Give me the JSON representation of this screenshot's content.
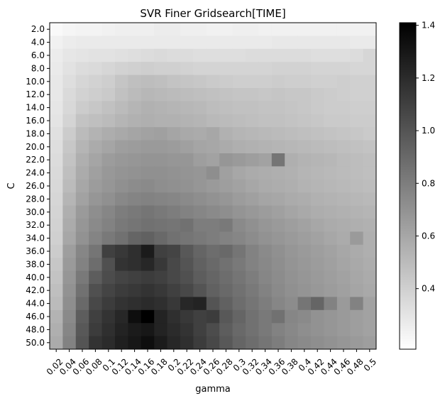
{
  "chart_data": {
    "type": "heatmap",
    "title": "SVR Finer Gridsearch[TIME]",
    "xlabel": "gamma",
    "ylabel": "C",
    "x_categories": [
      "0.02",
      "0.04",
      "0.06",
      "0.08",
      "0.1",
      "0.12",
      "0.14",
      "0.16",
      "0.18",
      "0.2",
      "0.22",
      "0.24",
      "0.26",
      "0.28",
      "0.3",
      "0.32",
      "0.34",
      "0.36",
      "0.38",
      "0.4",
      "0.42",
      "0.44",
      "0.46",
      "0.48",
      "0.5"
    ],
    "y_categories": [
      "2.0",
      "4.0",
      "6.0",
      "8.0",
      "10.0",
      "12.0",
      "14.0",
      "16.0",
      "18.0",
      "20.0",
      "22.0",
      "24.0",
      "26.0",
      "28.0",
      "30.0",
      "32.0",
      "34.0",
      "36.0",
      "38.0",
      "40.0",
      "42.0",
      "44.0",
      "46.0",
      "48.0",
      "50.0"
    ],
    "colormap": "Greys",
    "vmin": 0.17,
    "vmax": 1.41,
    "colorbar_ticks": [
      "0.4",
      "0.6",
      "0.8",
      "1.0",
      "1.2",
      "1.4"
    ],
    "colorbar_tick_values": [
      0.4,
      0.6,
      0.8,
      1.0,
      1.2,
      1.4
    ],
    "values": [
      [
        0.2,
        0.22,
        0.23,
        0.23,
        0.24,
        0.25,
        0.25,
        0.25,
        0.26,
        0.26,
        0.25,
        0.25,
        0.24,
        0.24,
        0.25,
        0.25,
        0.24,
        0.24,
        0.24,
        0.24,
        0.24,
        0.24,
        0.24,
        0.24,
        0.24
      ],
      [
        0.24,
        0.26,
        0.27,
        0.27,
        0.27,
        0.27,
        0.27,
        0.27,
        0.27,
        0.27,
        0.27,
        0.27,
        0.27,
        0.27,
        0.27,
        0.27,
        0.27,
        0.28,
        0.28,
        0.28,
        0.28,
        0.28,
        0.28,
        0.27,
        0.27
      ],
      [
        0.26,
        0.29,
        0.3,
        0.31,
        0.31,
        0.32,
        0.33,
        0.34,
        0.35,
        0.34,
        0.34,
        0.33,
        0.33,
        0.33,
        0.33,
        0.34,
        0.34,
        0.34,
        0.34,
        0.34,
        0.33,
        0.33,
        0.33,
        0.34,
        0.37
      ],
      [
        0.27,
        0.31,
        0.34,
        0.35,
        0.37,
        0.39,
        0.4,
        0.41,
        0.4,
        0.4,
        0.39,
        0.38,
        0.38,
        0.38,
        0.38,
        0.38,
        0.38,
        0.39,
        0.39,
        0.39,
        0.38,
        0.38,
        0.38,
        0.37,
        0.37
      ],
      [
        0.28,
        0.33,
        0.37,
        0.39,
        0.41,
        0.45,
        0.48,
        0.49,
        0.48,
        0.46,
        0.45,
        0.44,
        0.43,
        0.42,
        0.41,
        0.41,
        0.41,
        0.42,
        0.41,
        0.41,
        0.4,
        0.4,
        0.41,
        0.4,
        0.4
      ],
      [
        0.28,
        0.35,
        0.39,
        0.41,
        0.43,
        0.47,
        0.5,
        0.52,
        0.51,
        0.5,
        0.49,
        0.48,
        0.47,
        0.46,
        0.45,
        0.45,
        0.44,
        0.45,
        0.44,
        0.44,
        0.43,
        0.42,
        0.41,
        0.4,
        0.4
      ],
      [
        0.29,
        0.36,
        0.42,
        0.44,
        0.47,
        0.5,
        0.53,
        0.55,
        0.54,
        0.53,
        0.52,
        0.51,
        0.49,
        0.48,
        0.47,
        0.47,
        0.46,
        0.46,
        0.45,
        0.44,
        0.43,
        0.42,
        0.42,
        0.41,
        0.41
      ],
      [
        0.3,
        0.38,
        0.46,
        0.48,
        0.5,
        0.53,
        0.55,
        0.56,
        0.55,
        0.55,
        0.54,
        0.53,
        0.51,
        0.5,
        0.49,
        0.48,
        0.47,
        0.47,
        0.46,
        0.45,
        0.44,
        0.43,
        0.43,
        0.42,
        0.42
      ],
      [
        0.32,
        0.42,
        0.5,
        0.54,
        0.57,
        0.59,
        0.61,
        0.62,
        0.63,
        0.61,
        0.59,
        0.58,
        0.6,
        0.55,
        0.53,
        0.52,
        0.51,
        0.5,
        0.49,
        0.48,
        0.47,
        0.46,
        0.45,
        0.44,
        0.43
      ],
      [
        0.33,
        0.44,
        0.53,
        0.58,
        0.61,
        0.64,
        0.65,
        0.66,
        0.66,
        0.65,
        0.63,
        0.61,
        0.6,
        0.58,
        0.56,
        0.55,
        0.54,
        0.53,
        0.52,
        0.51,
        0.5,
        0.49,
        0.48,
        0.47,
        0.46
      ],
      [
        0.34,
        0.46,
        0.56,
        0.61,
        0.65,
        0.67,
        0.68,
        0.69,
        0.69,
        0.68,
        0.68,
        0.64,
        0.62,
        0.68,
        0.66,
        0.64,
        0.62,
        0.84,
        0.56,
        0.54,
        0.53,
        0.52,
        0.5,
        0.49,
        0.48
      ],
      [
        0.35,
        0.48,
        0.58,
        0.63,
        0.67,
        0.69,
        0.7,
        0.71,
        0.71,
        0.7,
        0.69,
        0.68,
        0.72,
        0.63,
        0.6,
        0.58,
        0.57,
        0.56,
        0.55,
        0.53,
        0.52,
        0.51,
        0.5,
        0.49,
        0.48
      ],
      [
        0.36,
        0.5,
        0.6,
        0.65,
        0.68,
        0.71,
        0.73,
        0.74,
        0.72,
        0.71,
        0.7,
        0.68,
        0.66,
        0.64,
        0.62,
        0.6,
        0.58,
        0.57,
        0.56,
        0.54,
        0.53,
        0.52,
        0.51,
        0.5,
        0.49
      ],
      [
        0.37,
        0.53,
        0.62,
        0.68,
        0.71,
        0.75,
        0.77,
        0.78,
        0.77,
        0.76,
        0.74,
        0.72,
        0.7,
        0.68,
        0.65,
        0.63,
        0.61,
        0.6,
        0.58,
        0.57,
        0.55,
        0.54,
        0.53,
        0.52,
        0.51
      ],
      [
        0.38,
        0.56,
        0.66,
        0.72,
        0.76,
        0.8,
        0.82,
        0.84,
        0.82,
        0.8,
        0.78,
        0.76,
        0.74,
        0.72,
        0.69,
        0.67,
        0.65,
        0.63,
        0.61,
        0.59,
        0.57,
        0.56,
        0.55,
        0.54,
        0.53
      ],
      [
        0.39,
        0.58,
        0.68,
        0.74,
        0.78,
        0.82,
        0.84,
        0.86,
        0.85,
        0.84,
        0.86,
        0.8,
        0.8,
        0.82,
        0.74,
        0.71,
        0.68,
        0.66,
        0.64,
        0.62,
        0.6,
        0.58,
        0.57,
        0.56,
        0.55
      ],
      [
        0.4,
        0.6,
        0.7,
        0.77,
        0.82,
        0.86,
        0.92,
        0.94,
        0.9,
        0.86,
        0.84,
        0.82,
        0.8,
        0.78,
        0.76,
        0.73,
        0.7,
        0.68,
        0.66,
        0.64,
        0.62,
        0.6,
        0.58,
        0.66,
        0.56
      ],
      [
        0.42,
        0.64,
        0.76,
        0.84,
        1.1,
        1.14,
        1.18,
        1.28,
        1.1,
        1.08,
        0.98,
        0.92,
        0.88,
        0.9,
        0.84,
        0.78,
        0.74,
        0.71,
        0.68,
        0.66,
        0.64,
        0.62,
        0.6,
        0.58,
        0.56
      ],
      [
        0.44,
        0.66,
        0.78,
        0.88,
        1.02,
        1.16,
        1.18,
        1.22,
        1.14,
        1.06,
        1.0,
        0.94,
        0.9,
        0.86,
        0.82,
        0.78,
        0.75,
        0.72,
        0.69,
        0.67,
        0.65,
        0.63,
        0.61,
        0.59,
        0.57
      ],
      [
        0.46,
        0.68,
        0.82,
        0.96,
        1.04,
        1.08,
        1.1,
        1.12,
        1.1,
        1.06,
        1.02,
        0.96,
        0.92,
        0.88,
        0.84,
        0.8,
        0.76,
        0.73,
        0.7,
        0.68,
        0.66,
        0.64,
        0.62,
        0.6,
        0.58
      ],
      [
        0.48,
        0.7,
        0.86,
        1.02,
        1.08,
        1.12,
        1.14,
        1.16,
        1.14,
        1.1,
        1.06,
        1.0,
        0.94,
        0.9,
        0.86,
        0.82,
        0.78,
        0.74,
        0.71,
        0.69,
        0.67,
        0.65,
        0.63,
        0.61,
        0.59
      ],
      [
        0.5,
        0.72,
        0.9,
        1.06,
        1.12,
        1.16,
        1.18,
        1.2,
        1.18,
        1.14,
        1.22,
        1.24,
        1.0,
        0.94,
        0.88,
        0.84,
        0.8,
        0.76,
        0.73,
        0.84,
        0.92,
        0.78,
        0.66,
        0.78,
        0.62
      ],
      [
        0.54,
        0.74,
        0.96,
        1.1,
        1.16,
        1.22,
        1.34,
        1.41,
        1.24,
        1.18,
        1.14,
        1.1,
        1.12,
        0.98,
        0.92,
        0.86,
        0.82,
        0.86,
        0.76,
        0.74,
        0.7,
        0.68,
        0.66,
        0.64,
        0.62
      ],
      [
        0.56,
        0.76,
        0.98,
        1.12,
        1.18,
        1.24,
        1.28,
        1.3,
        1.24,
        1.2,
        1.16,
        1.1,
        1.04,
        0.96,
        0.9,
        0.86,
        0.82,
        0.78,
        0.75,
        0.72,
        0.7,
        0.68,
        0.66,
        0.64,
        0.62
      ],
      [
        0.58,
        0.78,
        1.0,
        1.16,
        1.2,
        1.26,
        1.3,
        1.34,
        1.28,
        1.22,
        1.18,
        1.12,
        1.06,
        0.98,
        0.92,
        0.88,
        0.84,
        0.8,
        0.76,
        0.74,
        0.72,
        0.7,
        0.68,
        0.66,
        0.64
      ]
    ]
  }
}
